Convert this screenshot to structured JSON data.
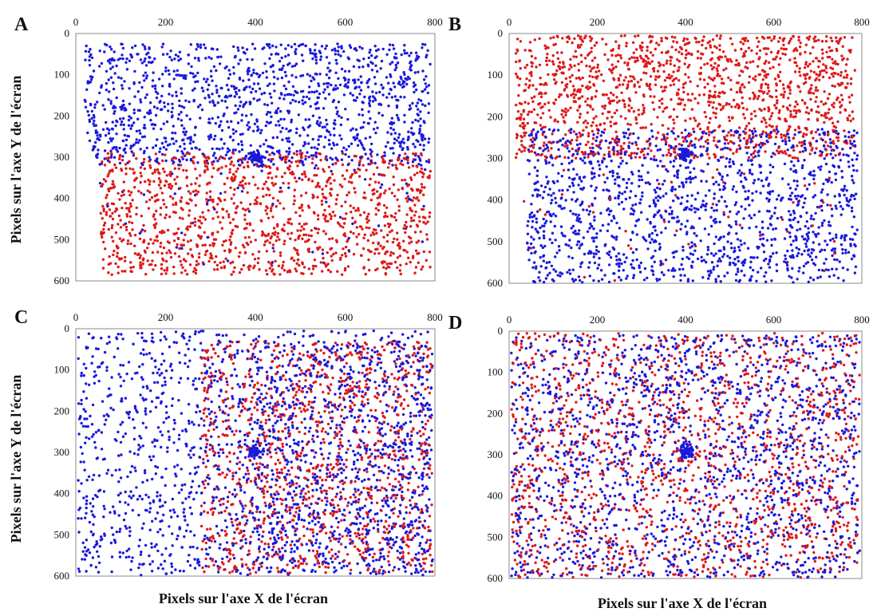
{
  "figure": {
    "panel_letters": [
      "A",
      "B",
      "C",
      "D"
    ],
    "y_axis_title": "Pixels sur l'axe Y de l'écran",
    "x_axis_title": "Pixels sur l'axe X de l'écran"
  },
  "colors": {
    "blue": "#1a1adb",
    "red": "#dd1a1a"
  },
  "chart_data": [
    {
      "type": "scatter",
      "panel": "A",
      "xlim": [
        0,
        800
      ],
      "ylim": [
        600,
        0
      ],
      "xticks": [
        "0",
        "200",
        "400",
        "600",
        "800"
      ],
      "yticks": [
        "0",
        "100",
        "200",
        "300",
        "400",
        "500",
        "600"
      ],
      "x_axis_position": "top",
      "y_inverted": true,
      "grid": false,
      "regions": [
        {
          "color": "blue",
          "x": [
            20,
            790
          ],
          "y": [
            25,
            320
          ],
          "count": 1350
        },
        {
          "color": "red",
          "x": [
            55,
            790
          ],
          "y": [
            290,
            585
          ],
          "count": 1300
        },
        {
          "color": "blue",
          "x": [
            20,
            790
          ],
          "y": [
            300,
            560
          ],
          "count": 70
        }
      ],
      "fixation_cluster": {
        "color": "blue",
        "x": 400,
        "y": 300,
        "radius": 14,
        "count": 60
      }
    },
    {
      "type": "scatter",
      "panel": "B",
      "xlim": [
        0,
        800
      ],
      "ylim": [
        600,
        0
      ],
      "xticks": [
        "0",
        "200",
        "400",
        "600",
        "800"
      ],
      "yticks": [
        "0",
        "100",
        "200",
        "300",
        "400",
        "500",
        "600"
      ],
      "x_axis_position": "top",
      "y_inverted": true,
      "grid": false,
      "regions": [
        {
          "color": "red",
          "x": [
            15,
            785
          ],
          "y": [
            5,
            300
          ],
          "count": 1500
        },
        {
          "color": "blue",
          "x": [
            40,
            790
          ],
          "y": [
            230,
            598
          ],
          "count": 1500
        },
        {
          "color": "red",
          "x": [
            20,
            760
          ],
          "y": [
            260,
            600
          ],
          "count": 60
        }
      ],
      "fixation_cluster": {
        "color": "blue",
        "x": 400,
        "y": 290,
        "radius": 14,
        "count": 60
      }
    },
    {
      "type": "scatter",
      "panel": "C",
      "xlim": [
        0,
        800
      ],
      "ylim": [
        600,
        0
      ],
      "xticks": [
        "0",
        "200",
        "400",
        "600",
        "800"
      ],
      "yticks": [
        "0",
        "100",
        "200",
        "300",
        "400",
        "500",
        "600"
      ],
      "x_axis_position": "top",
      "y_inverted": true,
      "grid": false,
      "regions": [
        {
          "color": "blue",
          "x": [
            5,
            790
          ],
          "y": [
            5,
            598
          ],
          "count": 1600
        },
        {
          "color": "red",
          "x": [
            280,
            795
          ],
          "y": [
            30,
            595
          ],
          "count": 1200
        },
        {
          "color": "blue",
          "x": [
            400,
            795
          ],
          "y": [
            30,
            595
          ],
          "count": 500
        }
      ],
      "fixation_cluster": {
        "color": "blue",
        "x": 400,
        "y": 300,
        "radius": 12,
        "count": 50
      }
    },
    {
      "type": "scatter",
      "panel": "D",
      "xlim": [
        0,
        800
      ],
      "ylim": [
        600,
        0
      ],
      "xticks": [
        "0",
        "200",
        "400",
        "600",
        "800"
      ],
      "yticks": [
        "0",
        "100",
        "200",
        "300",
        "400",
        "500",
        "600"
      ],
      "x_axis_position": "top",
      "y_inverted": true,
      "grid": false,
      "regions": [
        {
          "color": "blue",
          "x": [
            5,
            795
          ],
          "y": [
            10,
            598
          ],
          "count": 1700
        },
        {
          "color": "red",
          "x": [
            5,
            795
          ],
          "y": [
            5,
            598
          ],
          "count": 1500
        }
      ],
      "fixation_cluster": {
        "color": "blue",
        "x": 400,
        "y": 290,
        "radius": 15,
        "count": 70
      }
    }
  ]
}
